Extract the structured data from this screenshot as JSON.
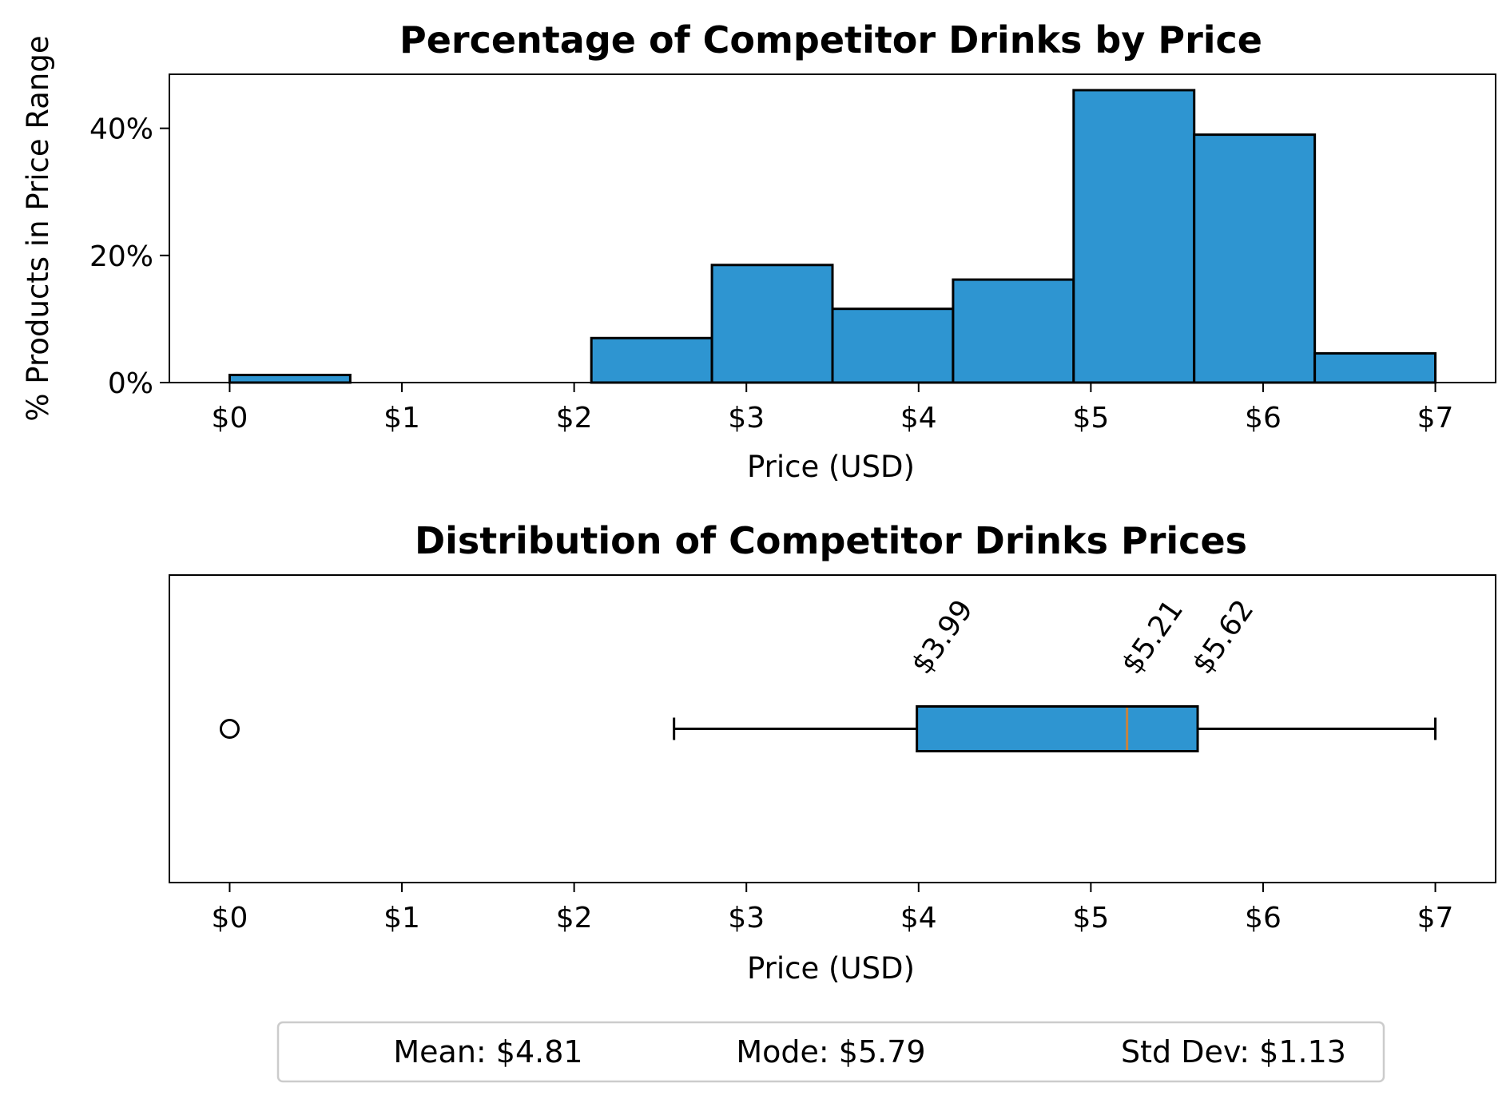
{
  "colors": {
    "bar_fill": "#2e95d1",
    "edge": "#000000",
    "median": "#c8833f",
    "background": "#ffffff"
  },
  "chart_data": [
    {
      "type": "bar",
      "title": "Percentage of Competitor Drinks by Price",
      "xlabel": "Price (USD)",
      "ylabel": "% Products in Price Range",
      "xlim": [
        -0.35,
        7.35
      ],
      "ylim": [
        0,
        48.5
      ],
      "x_ticks": [
        {
          "value": 0,
          "label": "$0"
        },
        {
          "value": 1,
          "label": "$1"
        },
        {
          "value": 2,
          "label": "$2"
        },
        {
          "value": 3,
          "label": "$3"
        },
        {
          "value": 4,
          "label": "$4"
        },
        {
          "value": 5,
          "label": "$5"
        },
        {
          "value": 6,
          "label": "$6"
        },
        {
          "value": 7,
          "label": "$7"
        }
      ],
      "y_ticks": [
        {
          "value": 0,
          "label": "0%"
        },
        {
          "value": 20,
          "label": "20%"
        },
        {
          "value": 40,
          "label": "40%"
        }
      ],
      "bins": [
        {
          "start": 0.0,
          "end": 0.7,
          "value": 1.2
        },
        {
          "start": 0.7,
          "end": 1.4,
          "value": 0
        },
        {
          "start": 1.4,
          "end": 2.1,
          "value": 0
        },
        {
          "start": 2.1,
          "end": 2.8,
          "value": 7.0
        },
        {
          "start": 2.8,
          "end": 3.5,
          "value": 18.5
        },
        {
          "start": 3.5,
          "end": 4.2,
          "value": 11.6
        },
        {
          "start": 4.2,
          "end": 4.9,
          "value": 16.2
        },
        {
          "start": 4.9,
          "end": 5.6,
          "value": 46.0
        },
        {
          "start": 5.6,
          "end": 6.3,
          "value": 39.0
        },
        {
          "start": 6.3,
          "end": 7.0,
          "value": 4.6
        }
      ],
      "grid": false,
      "legend": "none"
    },
    {
      "type": "box",
      "title": "Distribution of Competitor Drinks Prices",
      "xlabel": "Price (USD)",
      "xlim": [
        -0.35,
        7.35
      ],
      "x_ticks": [
        {
          "value": 0,
          "label": "$0"
        },
        {
          "value": 1,
          "label": "$1"
        },
        {
          "value": 2,
          "label": "$2"
        },
        {
          "value": 3,
          "label": "$3"
        },
        {
          "value": 4,
          "label": "$4"
        },
        {
          "value": 5,
          "label": "$5"
        },
        {
          "value": 6,
          "label": "$6"
        },
        {
          "value": 7,
          "label": "$7"
        }
      ],
      "whisker_low": 2.58,
      "q1": 3.99,
      "median": 5.21,
      "q3": 5.62,
      "whisker_high": 7.0,
      "outliers": [
        0.0
      ],
      "annotations": [
        {
          "value": 3.99,
          "label": "$3.99"
        },
        {
          "value": 5.21,
          "label": "$5.21"
        },
        {
          "value": 5.62,
          "label": "$5.62"
        }
      ],
      "grid": false
    }
  ],
  "stats": {
    "mean": "Mean: $4.81",
    "mode": "Mode: $5.79",
    "std": "Std Dev: $1.13"
  }
}
